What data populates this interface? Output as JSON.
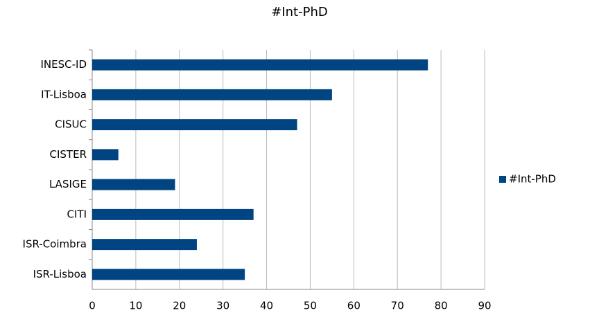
{
  "chart_data": {
    "type": "hbar",
    "title": "#Int-PhD",
    "categories": [
      "INESC-ID",
      "IT-Lisboa",
      "CISUC",
      "CISTER",
      "LASIGE",
      "CITI",
      "ISR-Coimbra",
      "ISR-Lisboa"
    ],
    "series": [
      {
        "name": "#Int-PhD",
        "color": "#004481",
        "values": [
          77,
          55,
          47,
          6,
          19,
          37,
          24,
          35
        ]
      }
    ],
    "xlim": [
      0,
      90
    ],
    "xticks": [
      0,
      10,
      20,
      30,
      40,
      50,
      60,
      70,
      80,
      90
    ],
    "grid": true,
    "legend": "right"
  }
}
